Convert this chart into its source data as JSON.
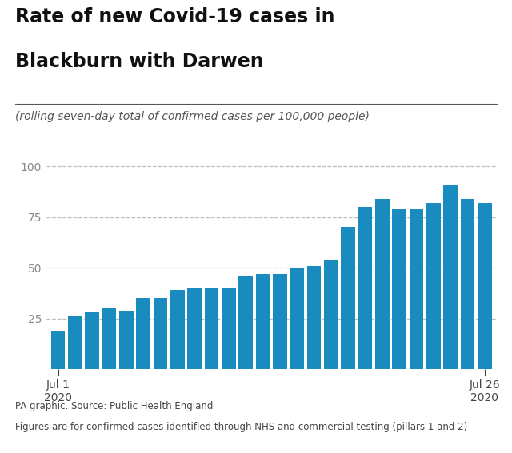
{
  "title_line1": "Rate of new Covid-19 cases in",
  "title_line2": "Blackburn with Darwen",
  "subtitle": "(rolling seven-day total of confirmed cases per 100,000 people)",
  "bar_color": "#1a8bbf",
  "values": [
    19,
    26,
    28,
    30,
    29,
    35,
    35,
    39,
    40,
    40,
    40,
    46,
    47,
    47,
    50,
    51,
    54,
    70,
    80,
    84,
    79,
    79,
    82,
    91,
    84,
    82
  ],
  "ylim": [
    0,
    105
  ],
  "yticks": [
    25,
    50,
    75,
    100
  ],
  "xlabel_left": "Jul 1\n2020",
  "xlabel_right": "Jul 26\n2020",
  "footer_line1": "PA graphic. Source: Public Health England",
  "footer_line2": "Figures are for confirmed cases identified through NHS and commercial testing (pillars 1 and 2)",
  "background_color": "#ffffff",
  "title_fontsize": 17,
  "subtitle_fontsize": 10,
  "tick_fontsize": 10,
  "footer_fontsize": 8.5
}
